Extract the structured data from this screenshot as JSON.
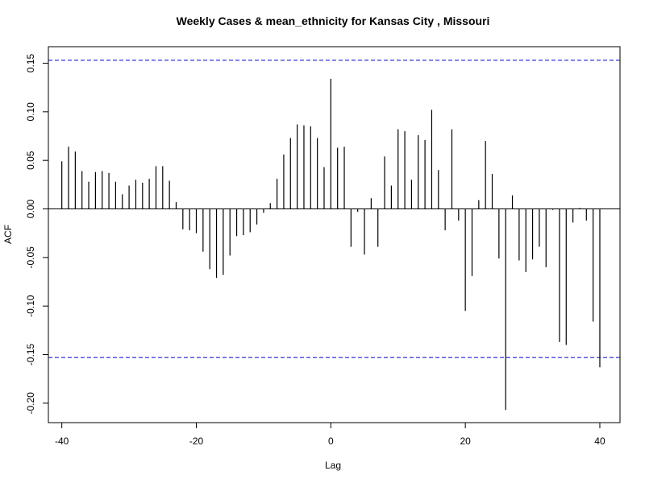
{
  "chart_data": {
    "type": "bar",
    "title": "Weekly Cases & mean_ethnicity for Kansas City , Missouri",
    "xlabel": "Lag",
    "ylabel": "ACF",
    "xlim": [
      -42,
      43
    ],
    "ylim": [
      -0.22,
      0.167
    ],
    "x_ticks": [
      -40,
      -20,
      0,
      20,
      40
    ],
    "y_ticks": [
      -0.2,
      -0.15,
      -0.1,
      -0.05,
      0.0,
      0.05,
      0.1,
      0.15
    ],
    "y_tick_labels": [
      "-0.20",
      "-0.15",
      "-0.10",
      "-0.05",
      "0.00",
      "0.05",
      "0.10",
      "0.15"
    ],
    "confidence_bounds": [
      0.153,
      -0.153
    ],
    "confidence_color": "#0000cc",
    "bar_color": "#000000",
    "grid": false,
    "lags": [
      -40,
      -39,
      -38,
      -37,
      -36,
      -35,
      -34,
      -33,
      -32,
      -31,
      -30,
      -29,
      -28,
      -27,
      -26,
      -25,
      -24,
      -23,
      -22,
      -21,
      -20,
      -19,
      -18,
      -17,
      -16,
      -15,
      -14,
      -13,
      -12,
      -11,
      -10,
      -9,
      -8,
      -7,
      -6,
      -5,
      -4,
      -3,
      -2,
      -1,
      0,
      1,
      2,
      3,
      4,
      5,
      6,
      7,
      8,
      9,
      10,
      11,
      12,
      13,
      14,
      15,
      16,
      17,
      18,
      19,
      20,
      21,
      22,
      23,
      24,
      25,
      26,
      27,
      28,
      29,
      30,
      31,
      32,
      33,
      34,
      35,
      36,
      37,
      38,
      39,
      40
    ],
    "values": [
      0.049,
      0.064,
      0.059,
      0.039,
      0.028,
      0.038,
      0.039,
      0.037,
      0.028,
      0.015,
      0.024,
      0.03,
      0.027,
      0.031,
      0.044,
      0.044,
      0.029,
      0.007,
      -0.021,
      -0.022,
      -0.025,
      -0.044,
      -0.062,
      -0.071,
      -0.068,
      -0.048,
      -0.028,
      -0.027,
      -0.024,
      -0.016,
      -0.004,
      0.006,
      0.031,
      0.056,
      0.073,
      0.087,
      0.086,
      0.085,
      0.073,
      0.043,
      0.134,
      0.063,
      0.064,
      -0.039,
      -0.003,
      -0.047,
      0.011,
      -0.039,
      0.054,
      0.024,
      0.082,
      0.08,
      0.03,
      0.076,
      0.071,
      0.102,
      0.04,
      -0.022,
      0.082,
      -0.012,
      -0.105,
      -0.069,
      0.009,
      0.07,
      0.036,
      -0.051,
      -0.207,
      0.014,
      -0.053,
      -0.065,
      -0.052,
      -0.039,
      -0.06,
      -0.001,
      -0.137,
      -0.14,
      -0.014,
      0.001,
      -0.012,
      -0.116,
      -0.163
    ]
  }
}
